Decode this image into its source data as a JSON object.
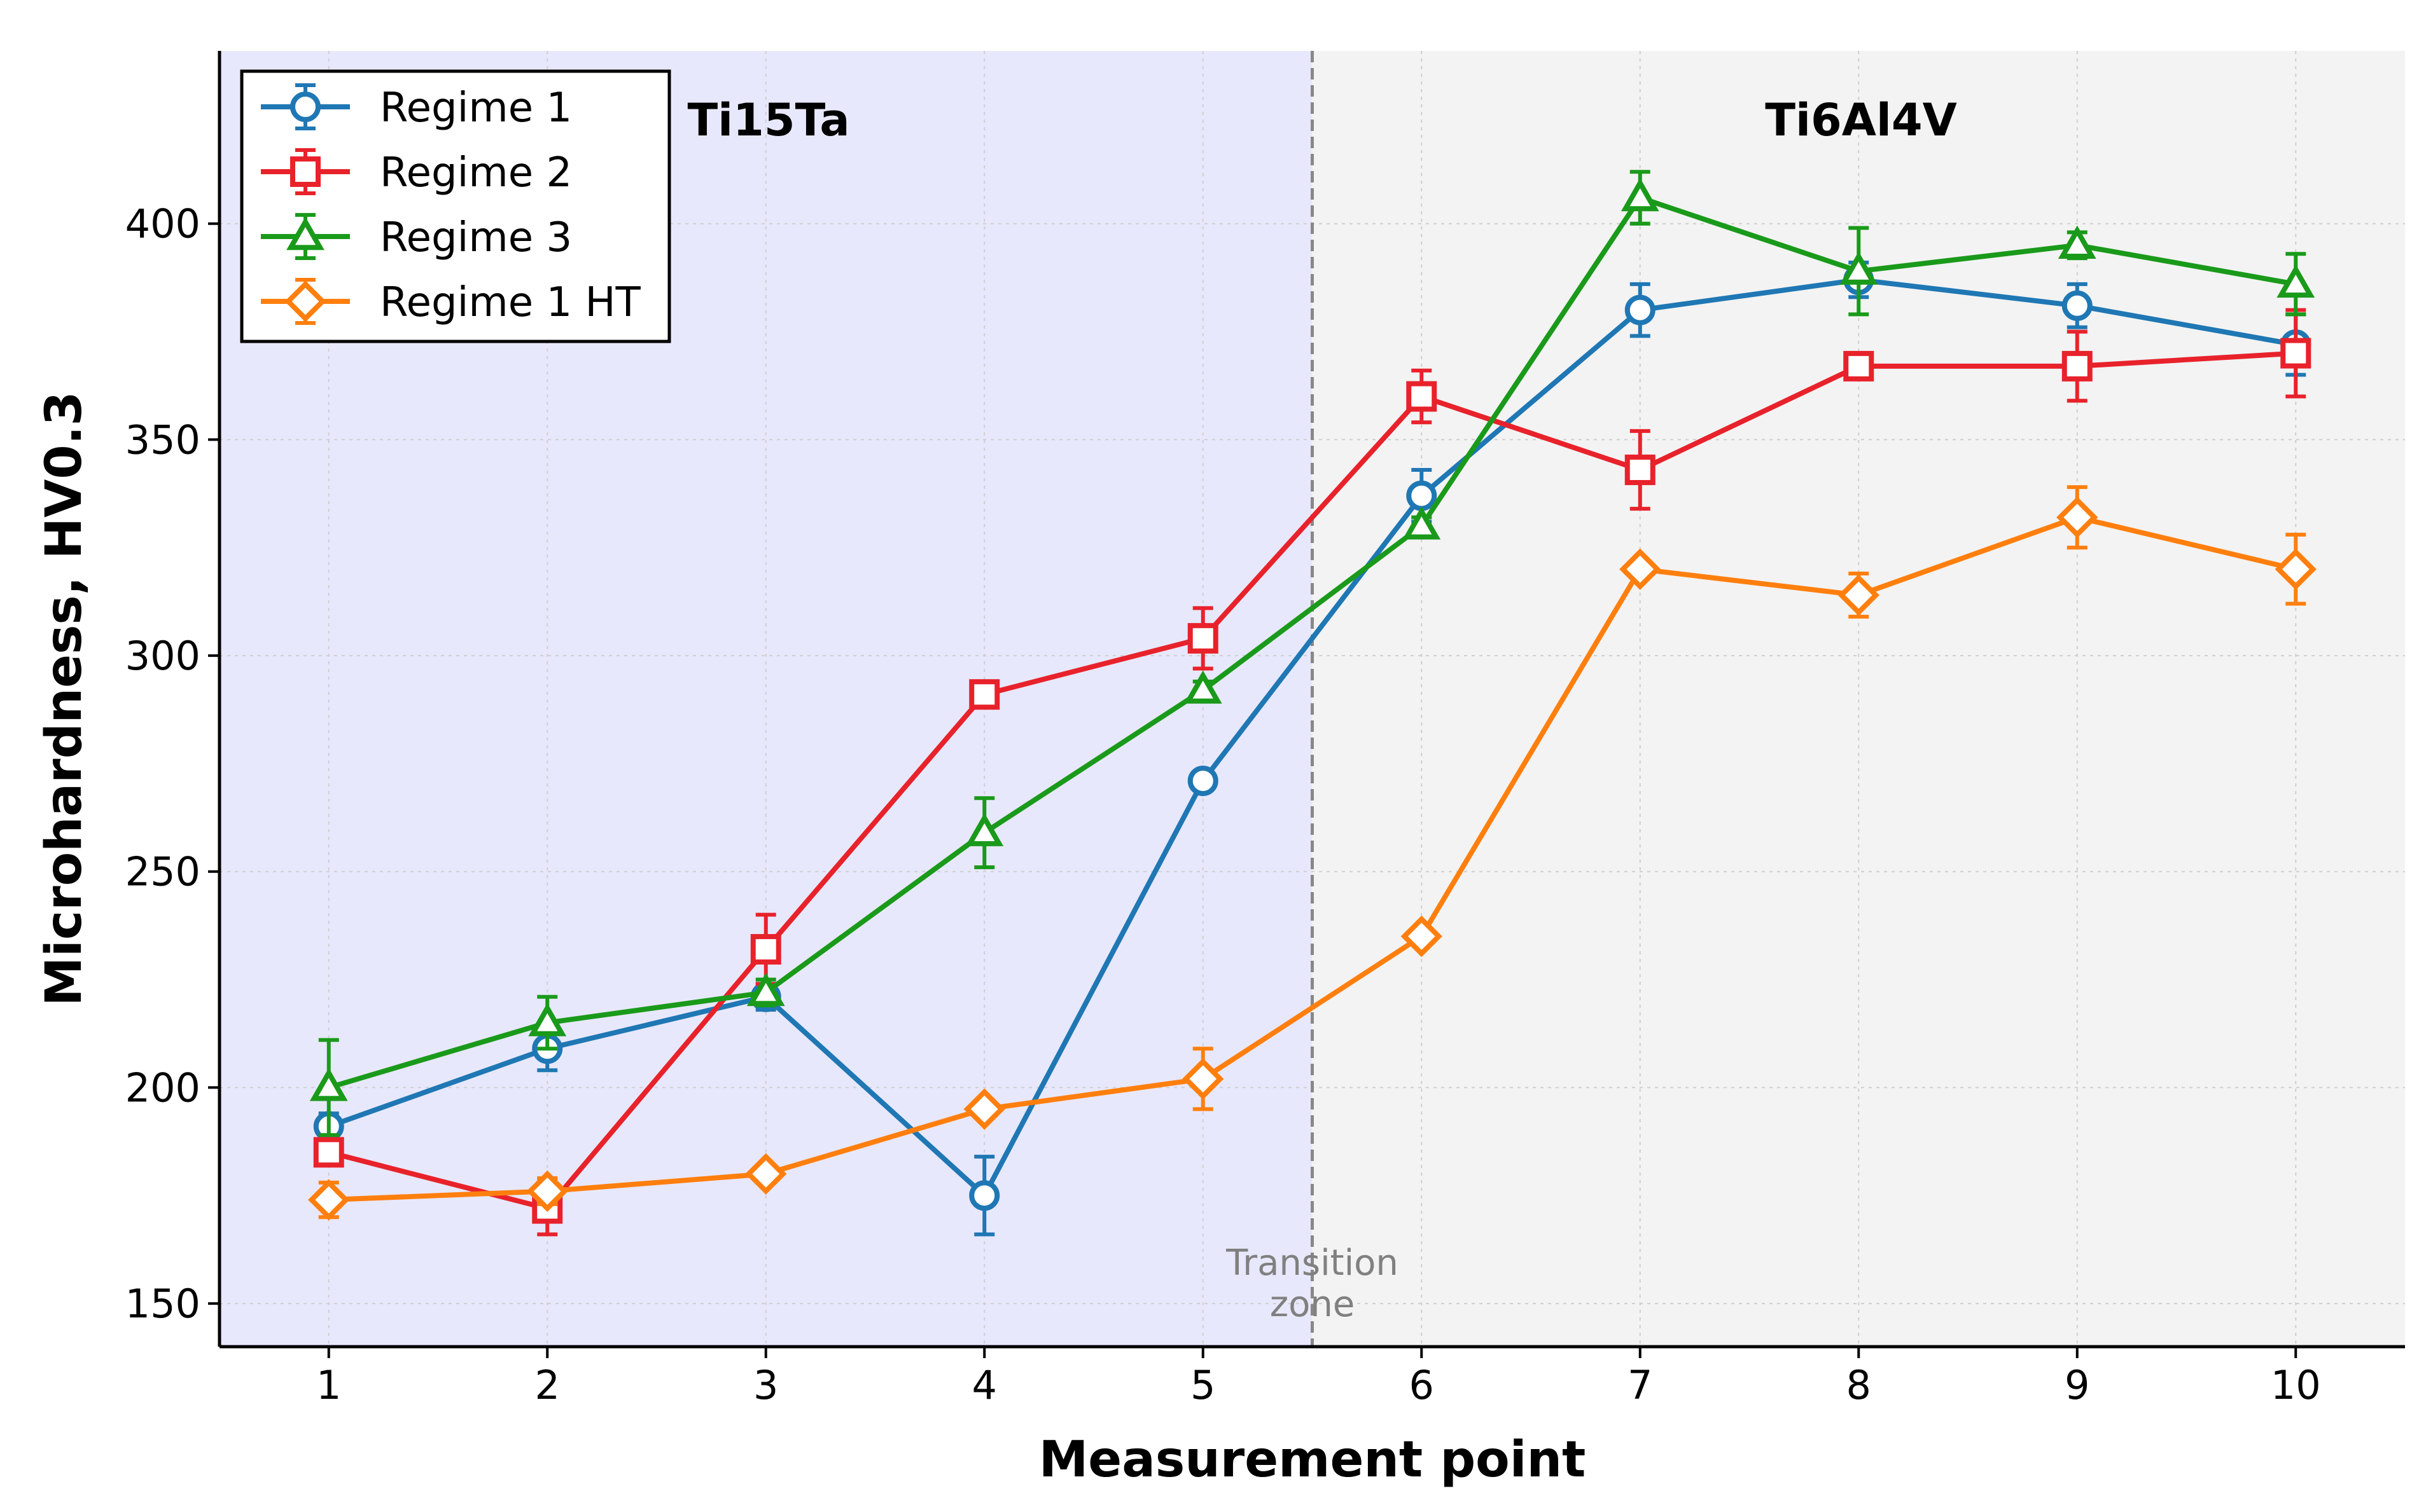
{
  "chart_data": {
    "type": "line",
    "xlabel": "Measurement point",
    "ylabel": "Microhardness, HV0.3",
    "x": [
      1,
      2,
      3,
      4,
      5,
      6,
      7,
      8,
      9,
      10
    ],
    "xlim": [
      0.5,
      10.5
    ],
    "ylim": [
      140,
      440
    ],
    "yticks": [
      150,
      200,
      250,
      300,
      350,
      400
    ],
    "grid": true,
    "legend_position": "top-left",
    "regions": [
      {
        "label": "Ti15Ta",
        "x_range": [
          0.5,
          5.5
        ],
        "color": "#e8e8fc"
      },
      {
        "label": "Ti6Al4V",
        "x_range": [
          5.5,
          10.5
        ],
        "color": "#f3f3f3"
      }
    ],
    "divider": {
      "x": 5.5,
      "label_line1": "Transition",
      "label_line2": "zone"
    },
    "series": [
      {
        "name": "Regime 1",
        "color": "#1f77b4",
        "marker": "circle",
        "values": [
          191,
          209,
          221,
          175,
          271,
          337,
          380,
          387,
          381,
          372
        ],
        "errors": [
          3,
          5,
          3,
          9,
          2,
          6,
          6,
          4,
          5,
          7
        ]
      },
      {
        "name": "Regime 2",
        "color": "#e8222b",
        "marker": "square",
        "values": [
          185,
          172,
          232,
          291,
          304,
          360,
          343,
          367,
          367,
          370
        ],
        "errors": [
          2,
          6,
          8,
          2,
          7,
          6,
          9,
          3,
          8,
          10
        ]
      },
      {
        "name": "Regime 3",
        "color": "#1a9a1a",
        "marker": "triangle",
        "values": [
          200,
          215,
          222,
          259,
          292,
          330,
          406,
          389,
          395,
          386
        ],
        "errors": [
          11,
          6,
          3,
          8,
          2,
          2,
          6,
          10,
          3,
          7
        ]
      },
      {
        "name": "Regime 1 HT",
        "color": "#ff7f0e",
        "marker": "diamond",
        "values": [
          174,
          176,
          180,
          195,
          202,
          235,
          320,
          314,
          332,
          320
        ],
        "errors": [
          4,
          3,
          2,
          2,
          7,
          2,
          2,
          5,
          7,
          8
        ]
      }
    ]
  }
}
